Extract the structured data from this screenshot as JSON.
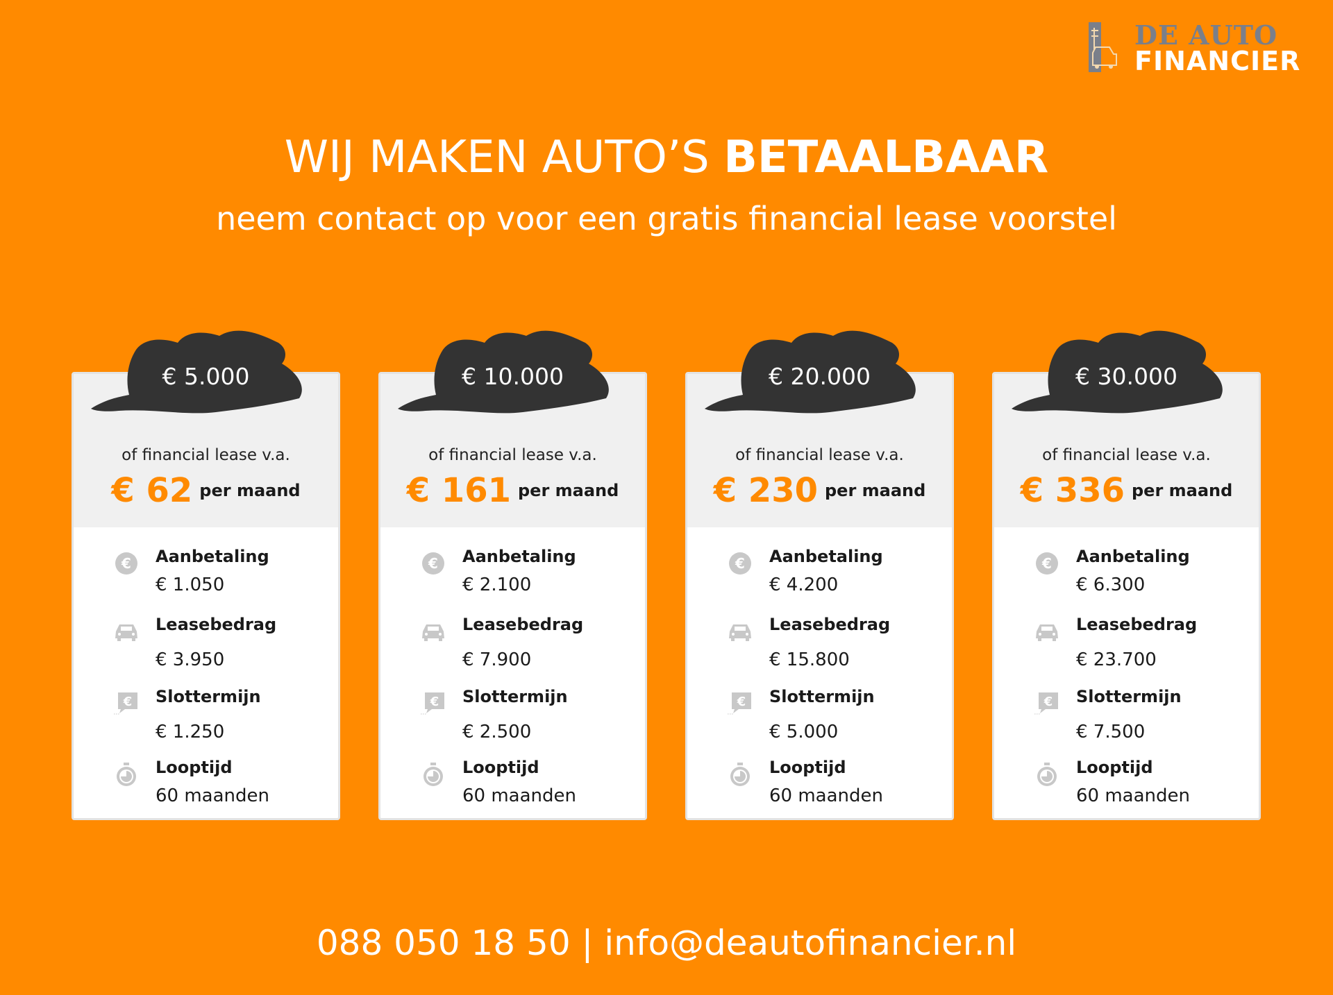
{
  "logo": {
    "line1": "DE AUTO",
    "line2": "FINANCIER"
  },
  "header": {
    "title_regular": "WIJ MAKEN AUTO’S ",
    "title_bold": "BETAALBAAR",
    "subtitle": "neem contact op voor een gratis financial lease voorstel"
  },
  "colors": {
    "background": "#FF8A00",
    "accent": "#FF8A00",
    "brush": "#333333",
    "card": "#FFFFFF",
    "card_header": "#F0F0F0",
    "icon": "#C8C8C8"
  },
  "cards": [
    {
      "price": "€ 5.000",
      "lead": "of financial lease v.a.",
      "monthly": "€ 62",
      "per": "per maand",
      "rows": [
        {
          "icon": "euro-coin-icon",
          "label": "Aanbetaling",
          "value": "€ 1.050"
        },
        {
          "icon": "car-icon",
          "label": "Leasebedrag",
          "value": "€ 3.950"
        },
        {
          "icon": "euro-speech-icon",
          "label": "Slottermijn",
          "value": "€ 1.250"
        },
        {
          "icon": "stopwatch-icon",
          "label": "Looptijd",
          "value": "60 maanden"
        }
      ]
    },
    {
      "price": "€ 10.000",
      "lead": "of financial lease v.a.",
      "monthly": "€ 161",
      "per": "per maand",
      "rows": [
        {
          "icon": "euro-coin-icon",
          "label": "Aanbetaling",
          "value": "€ 2.100"
        },
        {
          "icon": "car-icon",
          "label": "Leasebedrag",
          "value": "€ 7.900"
        },
        {
          "icon": "euro-speech-icon",
          "label": "Slottermijn",
          "value": "€ 2.500"
        },
        {
          "icon": "stopwatch-icon",
          "label": "Looptijd",
          "value": "60 maanden"
        }
      ]
    },
    {
      "price": "€ 20.000",
      "lead": "of financial lease v.a.",
      "monthly": "€ 230",
      "per": "per maand",
      "rows": [
        {
          "icon": "euro-coin-icon",
          "label": "Aanbetaling",
          "value": "€ 4.200"
        },
        {
          "icon": "car-icon",
          "label": "Leasebedrag",
          "value": "€ 15.800"
        },
        {
          "icon": "euro-speech-icon",
          "label": "Slottermijn",
          "value": "€ 5.000"
        },
        {
          "icon": "stopwatch-icon",
          "label": "Looptijd",
          "value": "60 maanden"
        }
      ]
    },
    {
      "price": "€ 30.000",
      "lead": "of financial lease v.a.",
      "monthly": "€ 336",
      "per": "per maand",
      "rows": [
        {
          "icon": "euro-coin-icon",
          "label": "Aanbetaling",
          "value": "€ 6.300"
        },
        {
          "icon": "car-icon",
          "label": "Leasebedrag",
          "value": "€ 23.700"
        },
        {
          "icon": "euro-speech-icon",
          "label": "Slottermijn",
          "value": "€ 7.500"
        },
        {
          "icon": "stopwatch-icon",
          "label": "Looptijd",
          "value": "60 maanden"
        }
      ]
    }
  ],
  "footer": {
    "phone": "088 050 18 50",
    "separator": " | ",
    "email": "info@deautofinancier.nl"
  }
}
